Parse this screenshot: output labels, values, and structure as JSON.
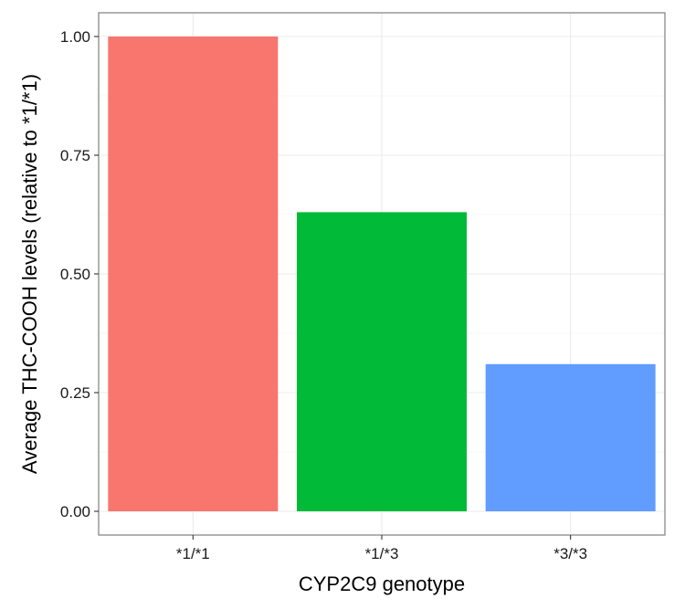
{
  "chart_data": {
    "type": "bar",
    "categories": [
      "*1/*1",
      "*1/*3",
      "*3/*3"
    ],
    "values": [
      1.0,
      0.63,
      0.31
    ],
    "colors": [
      "#F8766D",
      "#00BA38",
      "#619CFF"
    ],
    "title": "",
    "xlabel": "CYP2C9 genotype",
    "ylabel": "Average THC-COOH levels (relative to *1/*1)",
    "ylim": [
      -0.05,
      1.05
    ],
    "yticks": [
      0.0,
      0.25,
      0.5,
      0.75,
      1.0
    ],
    "ytick_labels": [
      "0.00",
      "0.25",
      "0.50",
      "0.75",
      "1.00"
    ],
    "grid": true,
    "legend": "none"
  }
}
